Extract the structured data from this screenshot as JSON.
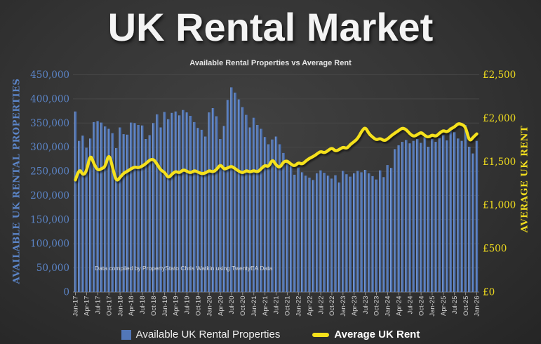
{
  "slide": {
    "title": "UK Rental Market",
    "subtitle": "Available Rental Properties vs Average Rent",
    "annotation": "Data compiled by PropertyStato Chris Watkin using TwentyEA Data",
    "colors": {
      "background": "#343434",
      "bar_highlight": "#8CA8D8",
      "bar_mid": "#5277B8",
      "bar_dark": "#40639F",
      "line_yellow": "#F5E11B",
      "left_axis_blue": "#5B84C6",
      "right_axis_yellow": "#F0DC1E",
      "gridline": "#474747",
      "x_label_gray": "#D4D4D4"
    }
  },
  "chart_data": {
    "type": "bar+line",
    "title": "UK Rental Market",
    "subtitle": "Available Rental Properties vs Average Rent",
    "x_unit": "month",
    "x_start": "Jan-17",
    "x_end": "Jan-26",
    "x_tick_labels": [
      "Jan-17",
      "Apr-17",
      "Jul-17",
      "Oct-17",
      "Jan-18",
      "Apr-18",
      "Jul-18",
      "Oct-18",
      "Jan-19",
      "Apr-19",
      "Jul-19",
      "Oct-19",
      "Jan-20",
      "Apr-20",
      "Jul-20",
      "Oct-20",
      "Jan-21",
      "Apr-21",
      "Jul-21",
      "Oct-21",
      "Jan-22",
      "Apr-22",
      "Jul-22",
      "Oct-22",
      "Jan-23",
      "Apr-23",
      "Jul-23",
      "Oct-23",
      "Jan-24",
      "Apr-24",
      "Jul-24",
      "Oct-24",
      "Jan-25",
      "Apr-25",
      "Jul-25",
      "Oct-25",
      "Jan-26"
    ],
    "left_axis": {
      "label": "AVAILABLE UK RENTAL PROPERTIES",
      "min": 0,
      "max": 450000,
      "step": 50000,
      "ticks": [
        "450,000",
        "400,000",
        "350,000",
        "300,000",
        "250,000",
        "200,000",
        "150,000",
        "100,000",
        "50,000",
        "0"
      ]
    },
    "right_axis": {
      "label": "AVERAGE UK RENT",
      "min": 0,
      "max": 2500,
      "step": 500,
      "ticks": [
        "£2,500",
        "£2,000",
        "£1,500",
        "£1,000",
        "£500",
        "£0"
      ]
    },
    "grid": "horizontal-faint",
    "legend_position": "bottom-center",
    "series": [
      {
        "name": "Available UK Rental Properties",
        "type": "bar",
        "color": "#5277B8",
        "values": [
          374000,
          313000,
          324000,
          299000,
          318000,
          352000,
          354000,
          351000,
          343000,
          338000,
          329000,
          298000,
          341000,
          327000,
          326000,
          351000,
          350000,
          346000,
          345000,
          317000,
          325000,
          350000,
          368000,
          341000,
          373000,
          358000,
          371000,
          374000,
          366000,
          377000,
          372000,
          365000,
          352000,
          340000,
          336000,
          322000,
          372000,
          381000,
          364000,
          317000,
          344000,
          398000,
          424000,
          413000,
          399000,
          383000,
          367000,
          341000,
          361000,
          346000,
          338000,
          321000,
          306000,
          316000,
          322000,
          306000,
          288000,
          272000,
          261000,
          243000,
          258000,
          248000,
          241000,
          237000,
          232000,
          246000,
          252000,
          247000,
          241000,
          235000,
          242000,
          227000,
          251000,
          244000,
          239000,
          246000,
          251000,
          248000,
          253000,
          246000,
          240000,
          233000,
          252000,
          238000,
          263000,
          257000,
          296000,
          304000,
          311000,
          315000,
          308000,
          313000,
          317000,
          309000,
          321000,
          301000,
          317000,
          311000,
          319000,
          325000,
          314000,
          341000,
          331000,
          318000,
          313000,
          346000,
          301000,
          287000,
          313000
        ]
      },
      {
        "name": "Average UK Rent",
        "type": "line",
        "color": "#F5E11B",
        "values": [
          1290,
          1430,
          1340,
          1390,
          1590,
          1470,
          1400,
          1420,
          1440,
          1600,
          1430,
          1270,
          1320,
          1370,
          1390,
          1420,
          1440,
          1430,
          1450,
          1480,
          1520,
          1530,
          1470,
          1400,
          1380,
          1310,
          1360,
          1390,
          1370,
          1410,
          1390,
          1370,
          1400,
          1380,
          1360,
          1370,
          1400,
          1380,
          1410,
          1470,
          1410,
          1430,
          1450,
          1420,
          1390,
          1370,
          1400,
          1380,
          1400,
          1380,
          1420,
          1460,
          1440,
          1530,
          1460,
          1430,
          1500,
          1510,
          1470,
          1450,
          1490,
          1470,
          1510,
          1540,
          1560,
          1590,
          1620,
          1600,
          1630,
          1660,
          1620,
          1640,
          1670,
          1650,
          1700,
          1730,
          1770,
          1850,
          1900,
          1820,
          1780,
          1750,
          1770,
          1740,
          1760,
          1800,
          1830,
          1860,
          1890,
          1870,
          1820,
          1790,
          1810,
          1840,
          1800,
          1780,
          1810,
          1790,
          1830,
          1860,
          1840,
          1880,
          1900,
          1940,
          1930,
          1900,
          1730,
          1780,
          1820
        ]
      }
    ],
    "annotation": "Data compiled by PropertyStato Chris Watkin using TwentyEA Data"
  }
}
